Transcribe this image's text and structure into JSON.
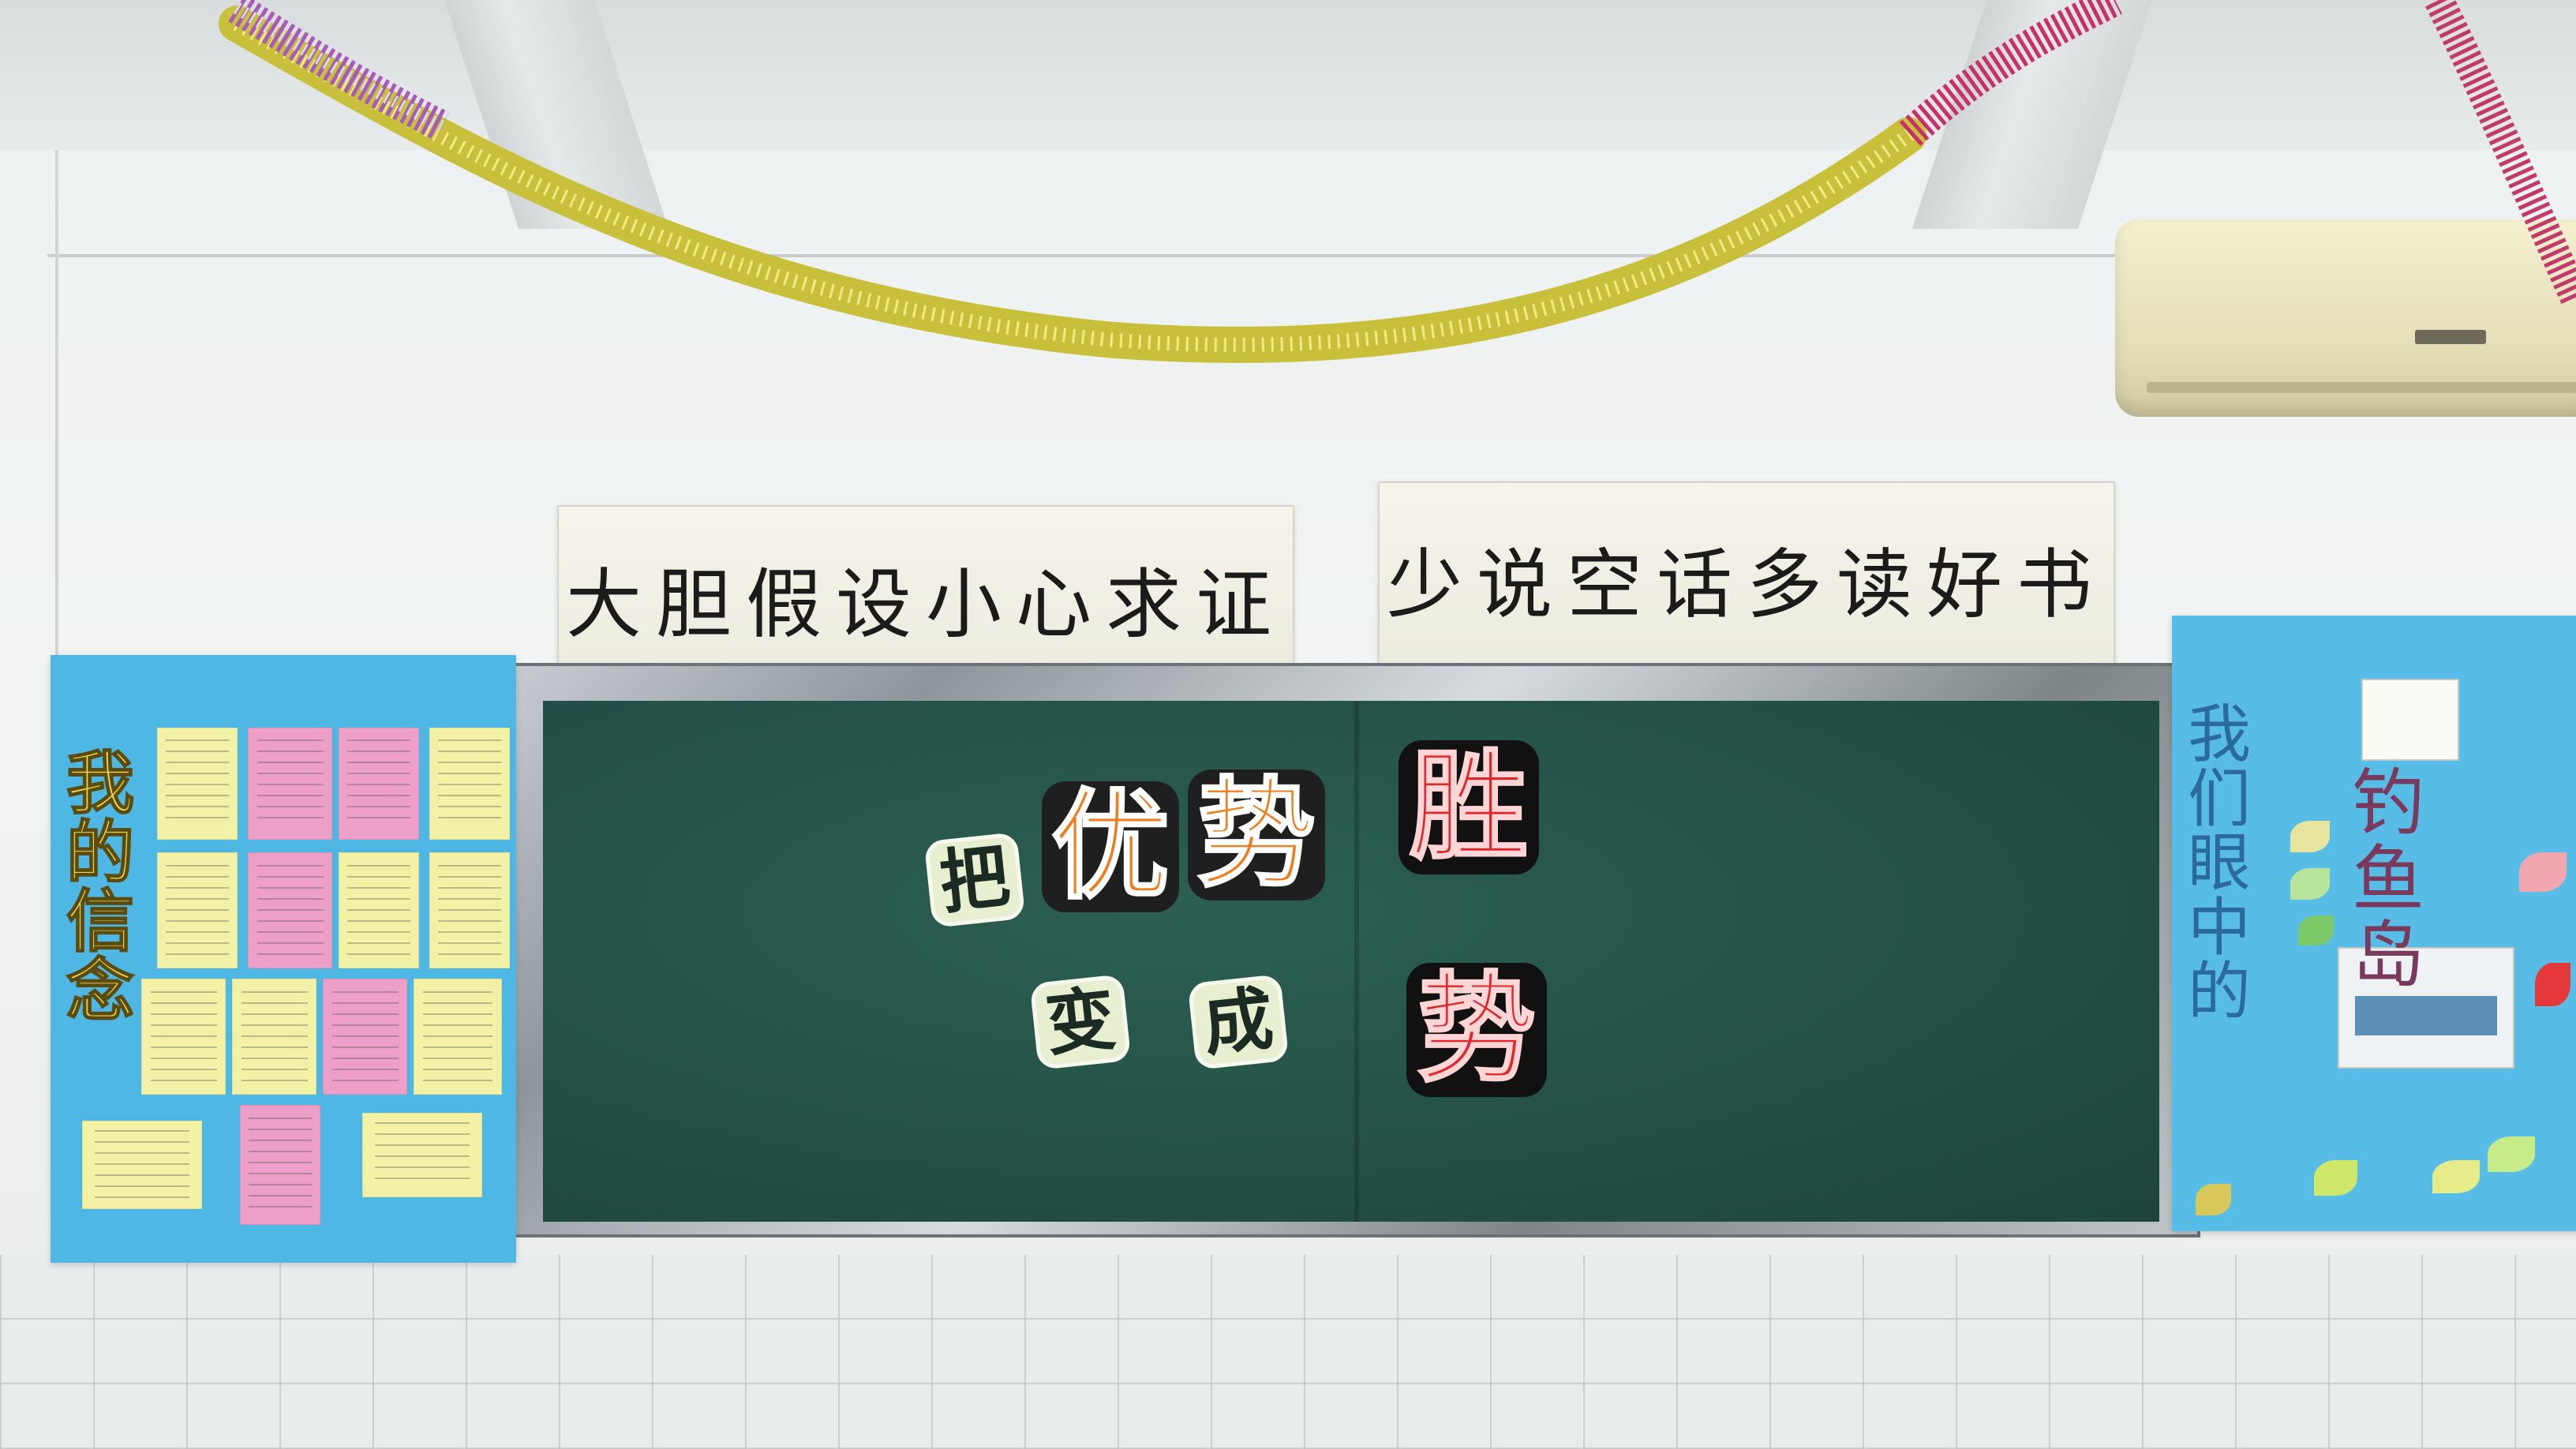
{
  "scroll_left": {
    "text": "大胆假设小心求证"
  },
  "scroll_right": {
    "text": "少说空话多读好书"
  },
  "blackboard": {
    "ba": "把",
    "you": "优",
    "shi1": "势",
    "sheng": "胜",
    "bian": "变",
    "cheng": "成",
    "shi2": "势"
  },
  "left_board": {
    "title_chars": [
      "我",
      "的",
      "信",
      "念"
    ]
  },
  "right_board": {
    "vertical_chars": [
      "我",
      "们",
      "眼",
      "中",
      "的"
    ],
    "title_chars": [
      "钓",
      "鱼",
      "岛"
    ]
  },
  "colors": {
    "board_green": "#234d44",
    "sticker_orange": "#f07c1c",
    "sticker_red": "#e0262a",
    "sideboard_blue": "#4fb7e4"
  }
}
